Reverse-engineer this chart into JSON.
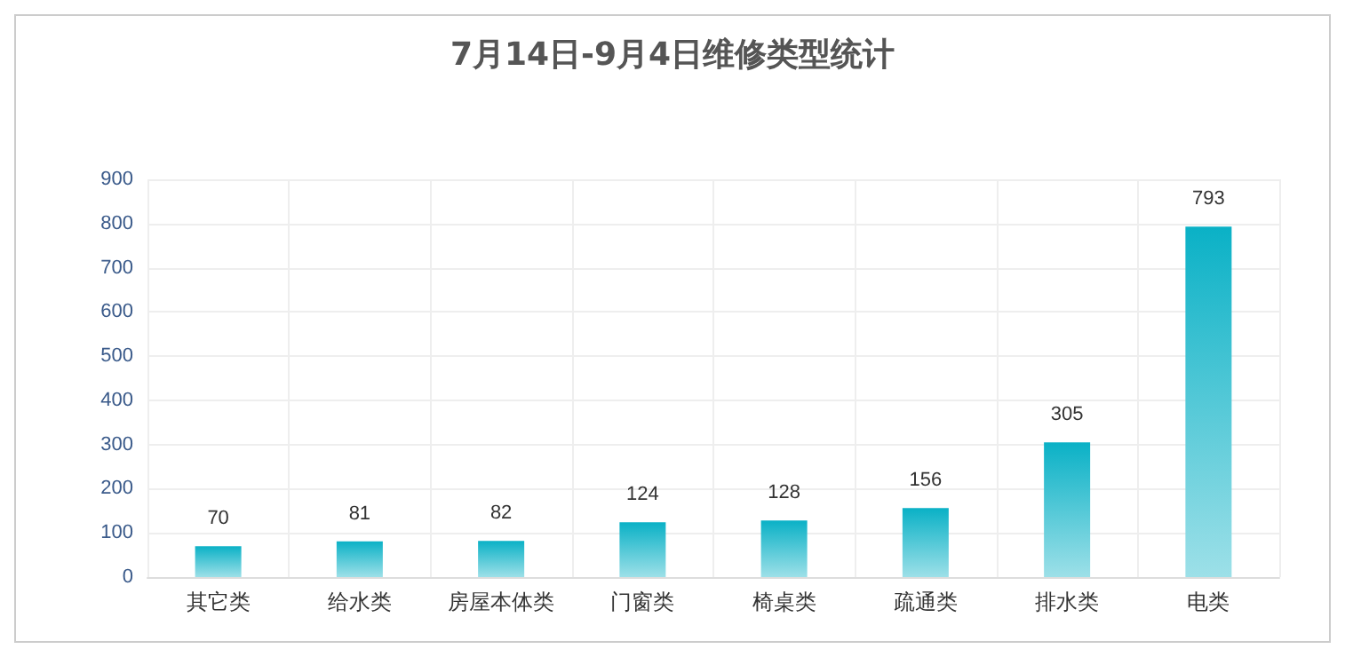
{
  "chart_data": {
    "type": "bar",
    "title": "7月14日-9月4日维修类型统计",
    "categories": [
      "其它类",
      "给水类",
      "房屋本体类",
      "门窗类",
      "椅桌类",
      "疏通类",
      "排水类",
      "电类"
    ],
    "values": [
      70,
      81,
      82,
      124,
      128,
      156,
      305,
      793
    ],
    "color": "#0ab1c6",
    "ylim": [
      0,
      900
    ],
    "yticks": [
      0,
      100,
      200,
      300,
      400,
      500,
      600,
      700,
      800,
      900
    ],
    "grid": true,
    "data_labels": true
  }
}
